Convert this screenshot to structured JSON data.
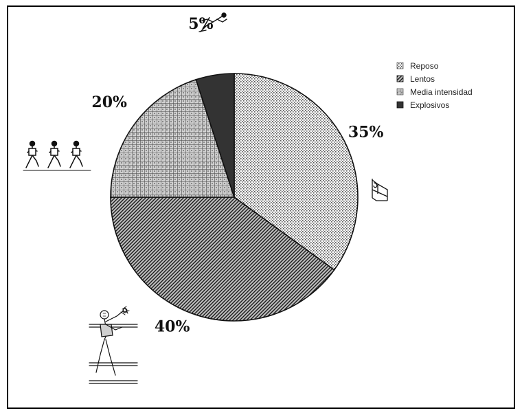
{
  "chart_data": {
    "type": "pie",
    "categories": [
      "Reposo",
      "Lentos",
      "Media intensidad",
      "Explosivos"
    ],
    "values": [
      35,
      40,
      20,
      5
    ],
    "labels": [
      "35%",
      "40%",
      "20%",
      "5%"
    ],
    "title": "",
    "legend": "top-right",
    "start_angle_deg": 0,
    "direction": "clockwise",
    "fills": [
      "dots-light",
      "diagonal-hatch",
      "grid-medium",
      "solid-dark"
    ]
  },
  "icons": {
    "reposo": "bed-icon",
    "lentos": "walking-figure-icon",
    "media": "runners-icon",
    "explosivos": "sprinter-icon"
  },
  "colors": {
    "ink": "#111111",
    "explosivos": "#333333"
  }
}
